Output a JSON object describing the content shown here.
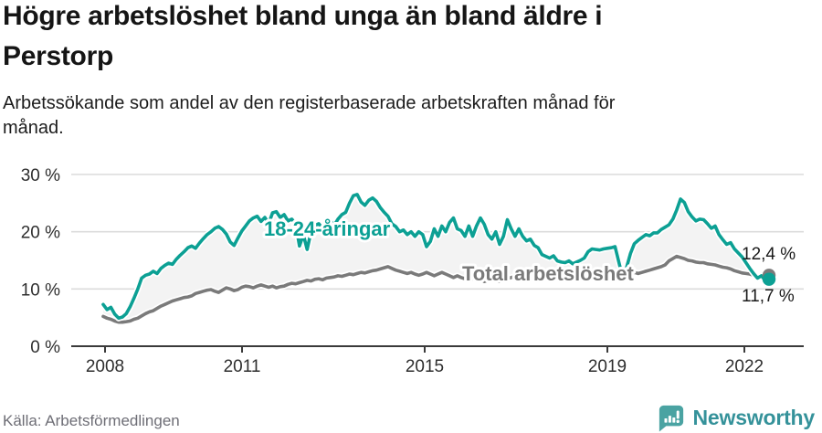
{
  "header": {
    "title_line1": "Högre arbetslöshet bland unga än bland äldre i",
    "title_line2": "Perstorp",
    "subtitle_line1": "Arbetssökande som andel av den registerbaserade arbetskraften månad för",
    "subtitle_line2": "månad."
  },
  "footer": {
    "source": "Källa: Arbetsförmedlingen",
    "brand": "Newsworthy",
    "brand_icon": "newsworthy-bar-chart-bubble-icon",
    "brand_color": "#35929a"
  },
  "chart_data": {
    "type": "line",
    "title": "Högre arbetslöshet bland unga än bland äldre i Perstorp",
    "subtitle": "Arbetssökande som andel av den registerbaserade arbetskraften månad för månad.",
    "source": "Källa: Arbetsförmedlingen",
    "x_start": "2008-01",
    "x_end": "2022-06",
    "x_interval": "monthly",
    "x_tick_years": [
      2008,
      2011,
      2015,
      2019,
      2022
    ],
    "y_ticks": [
      {
        "value": 0,
        "label": "0 %"
      },
      {
        "value": 10,
        "label": "10 %"
      },
      {
        "value": 20,
        "label": "20 %"
      },
      {
        "value": 30,
        "label": "30 %"
      }
    ],
    "ylim": [
      0,
      32
    ],
    "grid": true,
    "area_fill_between_series": true,
    "area_fill_color": "#f3f3f3",
    "gridline_color": "#dcdcdc",
    "axis_color": "#3a3a3a",
    "series": [
      {
        "name": "Total arbetslöshet",
        "color": "#7a7a7a",
        "end_label": "12,4 %",
        "end_value": 12.4,
        "values": [
          5.2,
          4.9,
          4.7,
          4.4,
          4.2,
          4.2,
          4.3,
          4.4,
          4.7,
          4.9,
          5.3,
          5.7,
          6.0,
          6.2,
          6.6,
          7.0,
          7.3,
          7.6,
          7.9,
          8.1,
          8.3,
          8.5,
          8.6,
          8.8,
          9.2,
          9.4,
          9.6,
          9.8,
          9.9,
          9.6,
          9.4,
          9.8,
          10.2,
          10.0,
          9.7,
          9.9,
          10.3,
          10.5,
          10.4,
          10.2,
          10.5,
          10.7,
          10.5,
          10.3,
          10.5,
          10.2,
          10.4,
          10.5,
          10.8,
          11.0,
          10.9,
          11.1,
          11.3,
          11.5,
          11.4,
          11.7,
          11.8,
          11.6,
          11.9,
          12.0,
          12.1,
          12.3,
          12.2,
          12.4,
          12.6,
          12.5,
          12.7,
          12.9,
          12.8,
          13.0,
          13.2,
          13.3,
          13.5,
          13.7,
          13.9,
          13.6,
          13.3,
          13.1,
          12.9,
          12.7,
          12.9,
          12.6,
          12.4,
          12.6,
          12.9,
          12.6,
          12.3,
          12.6,
          12.9,
          12.6,
          12.3,
          12.0,
          12.3,
          12.0,
          11.8,
          12.0,
          11.8,
          11.5,
          11.8,
          11.3,
          11.5,
          11.7,
          11.5,
          11.3,
          11.5,
          11.8,
          12.0,
          12.2,
          12.5,
          12.8,
          13.1,
          13.3,
          13.0,
          12.8,
          12.6,
          12.4,
          12.3,
          12.5,
          12.3,
          12.1,
          12.2,
          12.0,
          12.2,
          12.4,
          12.2,
          12.0,
          11.9,
          12.1,
          12.3,
          12.1,
          12.0,
          12.2,
          12.3,
          12.1,
          12.4,
          12.6,
          12.4,
          12.6,
          12.9,
          12.7,
          12.9,
          13.1,
          13.3,
          13.5,
          13.7,
          13.9,
          14.2,
          14.9,
          15.3,
          15.7,
          15.5,
          15.3,
          15.0,
          14.9,
          14.7,
          14.6,
          14.6,
          14.4,
          14.3,
          14.2,
          14.0,
          13.8,
          13.7,
          13.5,
          13.2,
          13.0,
          12.8,
          12.7,
          12.6,
          12.4,
          12.3,
          12.2,
          12.3,
          12.4
        ]
      },
      {
        "name": "18-24-åringar",
        "color": "#0ca094",
        "end_label": "11,7 %",
        "end_value": 11.7,
        "values": [
          7.3,
          6.4,
          6.8,
          5.6,
          4.9,
          5.1,
          5.7,
          6.9,
          8.4,
          10.0,
          11.9,
          12.4,
          12.6,
          13.1,
          12.7,
          13.6,
          14.1,
          14.5,
          14.3,
          15.2,
          15.9,
          16.5,
          17.2,
          17.5,
          17.1,
          18.0,
          18.8,
          19.5,
          20.0,
          20.6,
          20.9,
          20.4,
          19.6,
          18.2,
          17.6,
          18.9,
          20.1,
          21.0,
          21.9,
          22.4,
          22.7,
          21.8,
          22.5,
          21.4,
          23.3,
          23.5,
          22.5,
          23.0,
          21.9,
          22.2,
          21.4,
          17.5,
          19.5,
          16.9,
          20.0,
          21.1,
          21.4,
          20.6,
          21.7,
          22.0,
          21.1,
          22.2,
          23.0,
          23.4,
          25.0,
          26.3,
          26.5,
          25.2,
          24.6,
          25.5,
          25.9,
          25.3,
          24.2,
          23.4,
          22.7,
          21.4,
          20.9,
          20.0,
          20.3,
          19.5,
          20.0,
          19.2,
          20.0,
          19.5,
          17.4,
          18.3,
          20.5,
          19.2,
          21.0,
          20.0,
          21.6,
          22.4,
          20.5,
          20.2,
          19.2,
          21.0,
          19.2,
          21.0,
          22.4,
          21.3,
          19.5,
          18.7,
          20.0,
          17.8,
          19.2,
          22.1,
          20.5,
          19.2,
          20.5,
          19.2,
          18.4,
          18.7,
          17.6,
          17.2,
          16.0,
          15.7,
          15.4,
          15.8,
          14.9,
          14.7,
          14.6,
          14.9,
          14.4,
          14.7,
          15.0,
          15.4,
          16.5,
          17.0,
          16.9,
          16.8,
          17.0,
          17.1,
          17.2,
          17.4,
          14.6,
          11.9,
          13.8,
          16.2,
          17.9,
          18.5,
          19.0,
          19.5,
          19.3,
          19.8,
          19.8,
          20.4,
          20.8,
          21.2,
          22.2,
          23.8,
          25.7,
          25.1,
          23.5,
          22.6,
          21.9,
          22.2,
          22.1,
          21.4,
          20.6,
          21.0,
          19.5,
          18.6,
          17.8,
          18.1,
          17.0,
          16.3,
          15.6,
          14.6,
          13.6,
          12.7,
          11.9,
          12.3,
          11.5,
          11.7
        ]
      }
    ],
    "legend_position": "inline-labels-on-lines"
  }
}
